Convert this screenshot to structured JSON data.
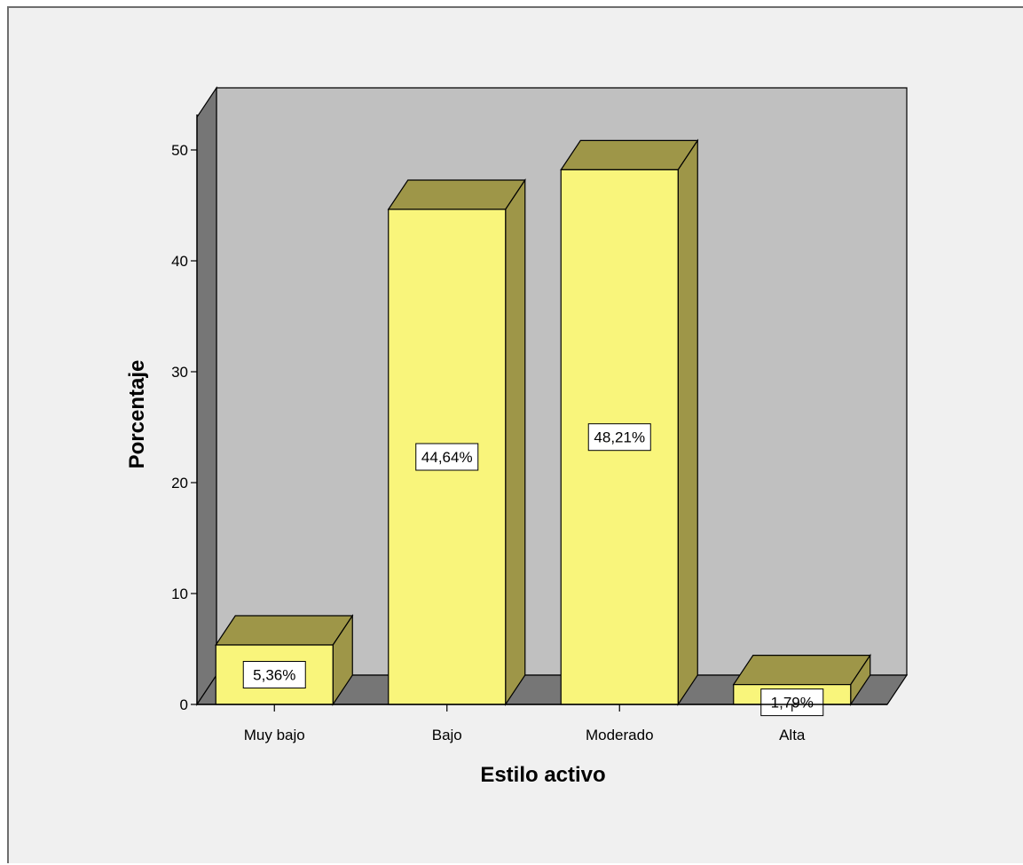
{
  "chart_data": {
    "type": "bar",
    "categories": [
      "Muy bajo",
      "Bajo",
      "Moderado",
      "Alta"
    ],
    "values": [
      5.36,
      44.64,
      48.21,
      1.79
    ],
    "value_labels": [
      "5,36%",
      "44,64%",
      "48,21%",
      "1,79%"
    ],
    "xlabel": "Estilo activo",
    "ylabel": "Porcentaje",
    "ylim": [
      0,
      50
    ],
    "yticks": [
      0,
      10,
      20,
      30,
      40,
      50
    ],
    "grid": false,
    "style": "3d",
    "colors": {
      "bar_front": "#f9f57b",
      "bar_top_side": "#9e9648",
      "back_wall": "#c0c0c0",
      "side_wall": "#767676",
      "floor": "#767676",
      "frame_bg": "#f0f0f0"
    }
  }
}
